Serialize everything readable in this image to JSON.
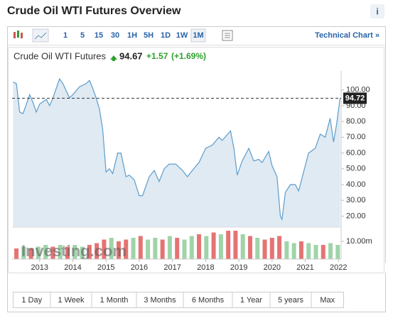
{
  "header": {
    "title": "Crude Oil WTI Futures Overview",
    "info": "i"
  },
  "toolbar": {
    "intervals": [
      "1",
      "5",
      "15",
      "30",
      "1H",
      "5H",
      "1D",
      "1W",
      "1M"
    ],
    "selected": "1M",
    "technical": "Technical Chart »"
  },
  "quote": {
    "name": "Crude Oil WTI Futures",
    "price": "94.67",
    "change": "+1.57",
    "change_pct": "(+1.69%)"
  },
  "ranges": [
    "1 Day",
    "1 Week",
    "1 Month",
    "3 Months",
    "6 Months",
    "1 Year",
    "5 years",
    "Max"
  ],
  "chart_data": {
    "type": "area",
    "watermark": "Investing.com",
    "x": [
      2012.2,
      2012.3,
      2012.4,
      2012.5,
      2012.6,
      2012.7,
      2012.8,
      2012.9,
      2013.0,
      2013.2,
      2013.3,
      2013.4,
      2013.6,
      2013.7,
      2013.9,
      2014.0,
      2014.2,
      2014.4,
      2014.5,
      2014.6,
      2014.7,
      2014.8,
      2014.9,
      2015.0,
      2015.1,
      2015.2,
      2015.35,
      2015.45,
      2015.6,
      2015.7,
      2015.85,
      2016.0,
      2016.1,
      2016.3,
      2016.45,
      2016.6,
      2016.75,
      2016.9,
      2017.1,
      2017.3,
      2017.45,
      2017.6,
      2017.8,
      2018.0,
      2018.2,
      2018.4,
      2018.5,
      2018.75,
      2018.85,
      2018.95,
      2019.1,
      2019.3,
      2019.45,
      2019.6,
      2019.7,
      2019.9,
      2020.0,
      2020.15,
      2020.25,
      2020.3,
      2020.4,
      2020.55,
      2020.7,
      2020.8,
      2020.95,
      2021.1,
      2021.3,
      2021.45,
      2021.6,
      2021.75,
      2021.85,
      2021.95,
      2022.05
    ],
    "series": [
      {
        "name": "Crude Oil WTI Futures",
        "color": "#5d9cc9",
        "fill": "#dfeaf3",
        "values": [
          105,
          104,
          86,
          85,
          91,
          97,
          92,
          86,
          91,
          94,
          90,
          95,
          107,
          104,
          95,
          97,
          102,
          104,
          106,
          101,
          95,
          88,
          75,
          48,
          50,
          47,
          60,
          60,
          45,
          46,
          43,
          33,
          33,
          45,
          49,
          42,
          50,
          53,
          53,
          49,
          45,
          49,
          54,
          63,
          65,
          70,
          68,
          74,
          63,
          46,
          55,
          63,
          55,
          56,
          54,
          61,
          52,
          45,
          20,
          18,
          35,
          40,
          40,
          36,
          48,
          60,
          63,
          72,
          70,
          82,
          67,
          79,
          95
        ]
      }
    ],
    "xlim": [
      2012.17,
      2022.08
    ],
    "xticks": [
      2013,
      2014,
      2015,
      2016,
      2017,
      2018,
      2019,
      2020,
      2021,
      2022
    ],
    "ylim": [
      13,
      112
    ],
    "yticks": [
      {
        "value": 20,
        "label": "20.00"
      },
      {
        "value": 30,
        "label": "30.00"
      },
      {
        "value": 40,
        "label": "40.00"
      },
      {
        "value": 50,
        "label": "50.00"
      },
      {
        "value": 60,
        "label": "60.00"
      },
      {
        "value": 70,
        "label": "70.00"
      },
      {
        "value": 80,
        "label": "80.00"
      },
      {
        "value": 90,
        "label": "90.00"
      },
      {
        "value": 100,
        "label": "100.00"
      }
    ],
    "last_price": 94.72,
    "volume": {
      "ylim": [
        0,
        18
      ],
      "yticks": [
        {
          "value": 10,
          "label": "10.00m"
        }
      ],
      "x": [
        2012.3,
        2012.52,
        2012.74,
        2012.96,
        2013.18,
        2013.4,
        2013.62,
        2013.84,
        2014.06,
        2014.28,
        2014.5,
        2014.72,
        2014.94,
        2015.16,
        2015.38,
        2015.6,
        2015.82,
        2016.04,
        2016.26,
        2016.48,
        2016.7,
        2016.92,
        2017.14,
        2017.36,
        2017.58,
        2017.8,
        2018.02,
        2018.24,
        2018.46,
        2018.68,
        2018.9,
        2019.12,
        2019.34,
        2019.56,
        2019.78,
        2020.0,
        2020.22,
        2020.44,
        2020.66,
        2020.88,
        2021.1,
        2021.32,
        2021.54,
        2021.76,
        2021.98
      ],
      "values": [
        6,
        7,
        6,
        7,
        8,
        7,
        8,
        7,
        8,
        7,
        8,
        9,
        11,
        12,
        10,
        11,
        12,
        13,
        11,
        12,
        11,
        13,
        12,
        11,
        13,
        14,
        13,
        15,
        14,
        16,
        16,
        14,
        13,
        12,
        11,
        12,
        13,
        10,
        9,
        10,
        9,
        8,
        8,
        9,
        8
      ],
      "colors": [
        "#e57373",
        "#9fd4a8",
        "#e57373",
        "#9fd4a8",
        "#9fd4a8",
        "#e57373",
        "#9fd4a8",
        "#e57373",
        "#9fd4a8",
        "#9fd4a8",
        "#e57373",
        "#e57373",
        "#e57373",
        "#9fd4a8",
        "#e57373",
        "#e57373",
        "#9fd4a8",
        "#e57373",
        "#9fd4a8",
        "#9fd4a8",
        "#e57373",
        "#9fd4a8",
        "#e57373",
        "#9fd4a8",
        "#9fd4a8",
        "#e57373",
        "#9fd4a8",
        "#e57373",
        "#9fd4a8",
        "#e57373",
        "#e57373",
        "#9fd4a8",
        "#e57373",
        "#9fd4a8",
        "#e57373",
        "#e57373",
        "#e57373",
        "#9fd4a8",
        "#9fd4a8",
        "#e57373",
        "#9fd4a8",
        "#9fd4a8",
        "#e57373",
        "#9fd4a8",
        "#9fd4a8"
      ]
    }
  }
}
